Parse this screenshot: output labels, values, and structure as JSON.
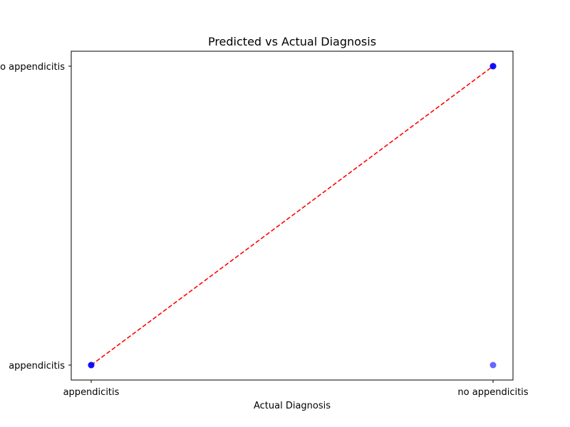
{
  "chart_data": {
    "type": "scatter",
    "title": "Predicted vs Actual Diagnosis",
    "xlabel": "Actual Diagnosis",
    "ylabel": "",
    "x_categories": [
      "appendicitis",
      "no appendicitis"
    ],
    "y_categories": [
      "appendicitis",
      "no appendicitis"
    ],
    "points": [
      {
        "x": "appendicitis",
        "y": "appendicitis"
      },
      {
        "x": "appendicitis",
        "y": "appendicitis"
      },
      {
        "x": "appendicitis",
        "y": "appendicitis"
      },
      {
        "x": "no appendicitis",
        "y": "no appendicitis"
      },
      {
        "x": "no appendicitis",
        "y": "no appendicitis"
      },
      {
        "x": "no appendicitis",
        "y": "no appendicitis"
      },
      {
        "x": "no appendicitis",
        "y": "appendicitis"
      }
    ],
    "reference_line": {
      "style": "dashed",
      "color": "#ff0000",
      "from": {
        "x": "appendicitis",
        "y": "appendicitis"
      },
      "to": {
        "x": "no appendicitis",
        "y": "no appendicitis"
      }
    },
    "point_color": "#0000ff",
    "point_alpha": 0.6,
    "grid": false,
    "legend": "none"
  }
}
